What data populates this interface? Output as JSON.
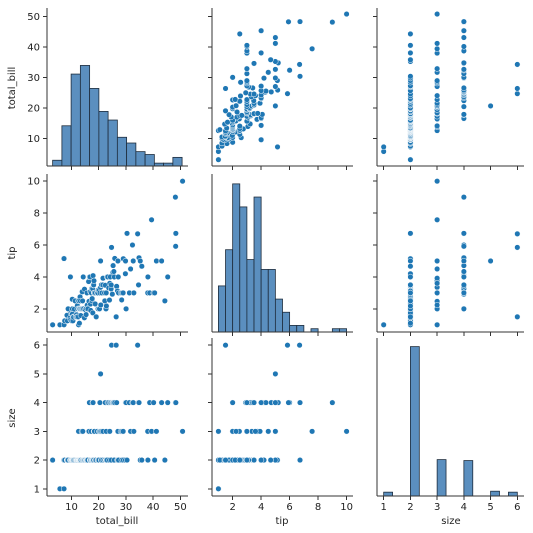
{
  "chart_data": {
    "type": "pairplot",
    "variables": [
      "total_bill",
      "tip",
      "size"
    ],
    "axis_labels": {
      "total_bill": "total_bill",
      "tip": "tip",
      "size": "size"
    },
    "ranges": {
      "total_bill": [
        1.0,
        52.8
      ],
      "tip": [
        0.55,
        10.45
      ],
      "size": [
        0.75,
        6.25
      ]
    },
    "ticks": {
      "total_bill": [
        10,
        20,
        30,
        40,
        50
      ],
      "tip": [
        2,
        4,
        6,
        8,
        10
      ],
      "size": [
        1,
        2,
        3,
        4,
        5,
        6
      ]
    },
    "colors": {
      "point": "#1f77b4",
      "bar": "#5b8fbf",
      "bar_edge": "#1e2d3d",
      "point_edge": "#ffffff"
    },
    "grid": false,
    "histograms": {
      "total_bill": {
        "bin_edges": [
          3.07,
          6.47,
          9.86,
          13.26,
          16.66,
          20.06,
          23.45,
          26.85,
          30.25,
          33.65,
          37.04,
          40.44,
          43.84,
          47.24,
          50.63
        ],
        "counts": [
          2,
          14,
          32,
          35,
          27,
          19,
          16,
          10,
          8,
          5,
          4,
          1,
          1,
          3
        ],
        "ylim": [
          0,
          55
        ]
      },
      "tip": {
        "bin_edges": [
          1.0,
          1.5,
          2.0,
          2.5,
          3.0,
          3.5,
          4.0,
          4.5,
          5.0,
          5.5,
          6.0,
          6.5,
          7.0,
          7.5,
          8.0,
          8.5,
          9.0,
          9.5,
          10.0
        ],
        "counts": [
          14,
          25,
          45,
          38,
          22,
          41,
          19,
          19,
          10,
          6,
          2,
          2,
          0,
          1,
          0,
          0,
          1,
          1
        ],
        "ylim": [
          0,
          48
        ]
      },
      "size": {
        "bin_edges": [
          1.0,
          1.333,
          1.667,
          2.0,
          2.333,
          2.667,
          3.0,
          3.333,
          3.667,
          4.0,
          4.333,
          4.667,
          5.0,
          5.333,
          5.667,
          6.0
        ],
        "counts": [
          4,
          0,
          0,
          156,
          0,
          0,
          38,
          0,
          0,
          37,
          0,
          0,
          5,
          0,
          4
        ],
        "ylim": [
          0,
          165
        ]
      }
    },
    "points": {
      "total_bill": [
        3.07,
        5.75,
        7.25,
        7.25,
        7.51,
        8.35,
        8.51,
        8.77,
        9.55,
        9.6,
        9.68,
        9.78,
        10.07,
        10.27,
        10.29,
        10.33,
        10.34,
        10.51,
        10.63,
        10.77,
        11.02,
        11.35,
        11.59,
        11.87,
        11.97,
        12.03,
        12.16,
        12.26,
        12.46,
        12.54,
        12.6,
        12.66,
        12.74,
        12.9,
        13.0,
        13.13,
        13.16,
        13.27,
        13.42,
        13.51,
        13.81,
        13.94,
        14.07,
        14.15,
        14.31,
        14.48,
        14.73,
        14.78,
        15.04,
        15.36,
        15.48,
        15.69,
        15.77,
        15.98,
        16.0,
        16.29,
        16.45,
        16.58,
        16.82,
        16.93,
        16.99,
        17.07,
        17.29,
        17.46,
        17.51,
        17.59,
        17.78,
        17.82,
        17.92,
        18.04,
        18.15,
        18.24,
        18.29,
        18.43,
        18.69,
        18.78,
        19.08,
        19.44,
        19.65,
        19.77,
        19.82,
        20.08,
        20.23,
        20.29,
        20.45,
        20.65,
        20.69,
        20.76,
        20.9,
        21.01,
        21.16,
        21.5,
        21.58,
        22.12,
        22.23,
        22.42,
        22.67,
        22.76,
        22.82,
        23.1,
        23.33,
        23.68,
        23.95,
        24.06,
        24.27,
        24.55,
        24.59,
        24.71,
        25.0,
        25.21,
        25.29,
        25.56,
        25.71,
        25.89,
        26.41,
        26.59,
        26.88,
        27.05,
        27.18,
        27.28,
        28.15,
        28.44,
        28.55,
        28.97,
        29.03,
        29.8,
        29.85,
        30.06,
        30.4,
        31.27,
        31.71,
        32.4,
        32.68,
        32.9,
        34.3,
        34.63,
        34.81,
        35.26,
        35.83,
        38.01,
        38.07,
        38.73,
        39.42,
        40.17,
        40.55,
        41.19,
        43.11,
        44.3,
        45.35,
        48.17,
        48.27,
        48.33,
        50.81
      ],
      "tip": [
        1.0,
        1.0,
        1.0,
        5.15,
        1.25,
        1.6,
        1.25,
        2.0,
        1.45,
        4.0,
        1.32,
        1.73,
        1.25,
        1.71,
        2.6,
        1.67,
        2.0,
        1.25,
        1.5,
        1.47,
        1.98,
        2.5,
        1.5,
        1.63,
        1.5,
        1.5,
        2.2,
        2.0,
        1.5,
        2.5,
        1.0,
        2.5,
        2.01,
        1.1,
        2.0,
        2.0,
        2.75,
        2.5,
        1.58,
        2.0,
        2.0,
        3.07,
        2.5,
        2.0,
        4.0,
        2.0,
        1.44,
        3.23,
        1.96,
        1.64,
        2.02,
        3.0,
        2.23,
        2.03,
        2.0,
        3.71,
        2.47,
        4.0,
        4.0,
        3.07,
        2.3,
        1.9,
        3.0,
        3.27,
        2.5,
        2.64,
        3.27,
        1.75,
        4.08,
        3.48,
        3.5,
        3.76,
        3.0,
        3.0,
        2.31,
        3.0,
        1.5,
        3.0,
        3.0,
        2.0,
        3.18,
        3.15,
        2.01,
        2.0,
        3.0,
        3.35,
        5.0,
        2.24,
        3.5,
        3.5,
        3.0,
        3.5,
        3.92,
        3.0,
        2.5,
        3.48,
        2.0,
        3.0,
        2.18,
        4.0,
        4.0,
        3.31,
        2.55,
        3.6,
        4.0,
        3.25,
        3.5,
        5.85,
        2.92,
        4.29,
        4.71,
        4.34,
        4.0,
        5.16,
        1.5,
        3.41,
        3.12,
        5.0,
        4.0,
        3.0,
        3.0,
        2.56,
        3.0,
        3.0,
        5.14,
        4.2,
        5.0,
        2.0,
        6.73,
        3.0,
        4.5,
        6.0,
        5.0,
        3.0,
        6.7,
        3.5,
        5.2,
        5.0,
        4.67,
        3.0,
        4.0,
        3.0,
        7.58,
        3.0,
        3.0,
        5.0,
        5.0,
        2.5,
        4.0,
        9.0,
        5.92,
        6.73,
        10.0
      ],
      "size": [
        2,
        1,
        1,
        2,
        2,
        2,
        2,
        2,
        2,
        2,
        2,
        2,
        2,
        2,
        2,
        2,
        2,
        2,
        2,
        2,
        2,
        2,
        2,
        2,
        2,
        2,
        2,
        2,
        2,
        2,
        3,
        2,
        2,
        2,
        2,
        2,
        2,
        2,
        2,
        2,
        3,
        2,
        2,
        3,
        2,
        2,
        2,
        2,
        2,
        2,
        2,
        2,
        2,
        2,
        2,
        3,
        3,
        4,
        2,
        2,
        2,
        2,
        3,
        2,
        2,
        2,
        4,
        2,
        4,
        2,
        2,
        3,
        3,
        3,
        2,
        2,
        2,
        3,
        2,
        2,
        2,
        2,
        3,
        3,
        4,
        3,
        5,
        3,
        2,
        2,
        3,
        2,
        3,
        2,
        2,
        4,
        2,
        3,
        2,
        2,
        4,
        4,
        2,
        3,
        4,
        4,
        2,
        6,
        4,
        4,
        4,
        4,
        2,
        4,
        6,
        4,
        2,
        3,
        2,
        2,
        3,
        2,
        3,
        3,
        2,
        2,
        4,
        4,
        2,
        4,
        3,
        4,
        4,
        3,
        6,
        4,
        4,
        2,
        2,
        3,
        2,
        4,
        3,
        4,
        2,
        3,
        4,
        2,
        4,
        4,
        4,
        4,
        3
      ]
    }
  }
}
